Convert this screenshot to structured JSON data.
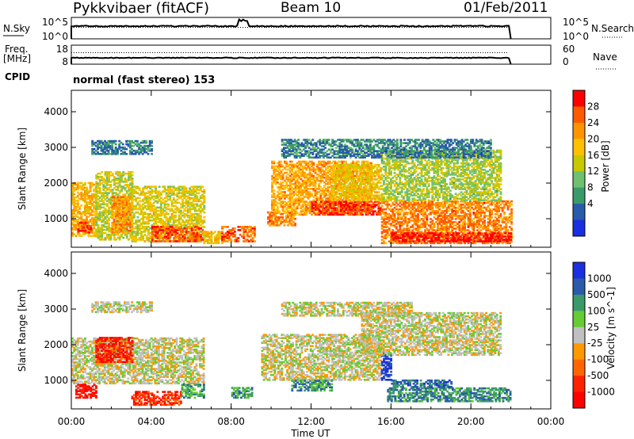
{
  "header": {
    "station": "Pykkvibaer (fitACF)",
    "beam": "Beam 10",
    "date": "01/Feb/2011"
  },
  "noise_panel": {
    "left_label": "N.Sky",
    "right_label": "N.Search",
    "left_ticks": [
      "10^5",
      "10^0"
    ],
    "right_ticks": [
      "10^5",
      "10^0"
    ]
  },
  "freq_panel": {
    "left_label_line1": "Freq.",
    "left_label_line2": "[MHz]",
    "right_label": "Nave",
    "left_ticks": [
      "18",
      "8"
    ],
    "right_ticks": [
      "60",
      "0"
    ]
  },
  "cpid": {
    "label": "CPID",
    "text": "normal (fast stereo) 153"
  },
  "chart_data": [
    {
      "type": "heatmap",
      "name": "power",
      "ylabel": "Slant Range [km]",
      "xlabel": "",
      "y_ticks": [
        1000,
        2000,
        3000,
        4000
      ],
      "ylim": [
        200,
        4600
      ],
      "xlim_hours": [
        0,
        24
      ],
      "colorbar": {
        "label": "Power [dB]",
        "ticks": [
          "28",
          "24",
          "20",
          "16",
          "12",
          "8",
          "4"
        ],
        "colors": [
          "#ff0000",
          "#ff5a00",
          "#ff9400",
          "#ffc000",
          "#c8c800",
          "#6fc06f",
          "#3a9a6a",
          "#2a5aaa",
          "#1a30e0"
        ]
      },
      "regions": [
        {
          "t": [
            0.0,
            1.2
          ],
          "r": [
            500,
            2000
          ],
          "level": 0.65
        },
        {
          "t": [
            0.3,
            1.0
          ],
          "r": [
            600,
            900
          ],
          "level": 0.95
        },
        {
          "t": [
            1.2,
            3.0
          ],
          "r": [
            400,
            2300
          ],
          "level": 0.5
        },
        {
          "t": [
            2.0,
            3.0
          ],
          "r": [
            600,
            1600
          ],
          "level": 0.75
        },
        {
          "t": [
            3.0,
            6.6
          ],
          "r": [
            350,
            1900
          ],
          "level": 0.55
        },
        {
          "t": [
            4.0,
            6.6
          ],
          "r": [
            350,
            800
          ],
          "level": 0.9
        },
        {
          "t": [
            6.6,
            7.5
          ],
          "r": [
            300,
            650
          ],
          "level": 0.6
        },
        {
          "t": [
            7.5,
            9.2
          ],
          "r": [
            350,
            800
          ],
          "level": 0.85
        },
        {
          "t": [
            9.8,
            11.2
          ],
          "r": [
            800,
            1200
          ],
          "level": 0.8
        },
        {
          "t": [
            10.0,
            15.0
          ],
          "r": [
            1100,
            2600
          ],
          "level": 0.7
        },
        {
          "t": [
            12.0,
            15.5
          ],
          "r": [
            1100,
            1500
          ],
          "level": 0.95
        },
        {
          "t": [
            13.0,
            15.5
          ],
          "r": [
            1500,
            2500
          ],
          "level": 0.6
        },
        {
          "t": [
            15.5,
            22.0
          ],
          "r": [
            300,
            1500
          ],
          "level": 0.8
        },
        {
          "t": [
            16.0,
            22.0
          ],
          "r": [
            350,
            600
          ],
          "level": 1.0
        },
        {
          "t": [
            15.5,
            21.5
          ],
          "r": [
            1500,
            2900
          ],
          "level": 0.45
        },
        {
          "t": [
            10.5,
            21.0
          ],
          "r": [
            2700,
            3200
          ],
          "level": 0.2
        },
        {
          "t": [
            1.0,
            4.0
          ],
          "r": [
            2800,
            3200
          ],
          "level": 0.2
        }
      ]
    },
    {
      "type": "heatmap",
      "name": "velocity",
      "ylabel": "Slant Range [km]",
      "xlabel": "Time UT",
      "x_ticks": [
        "00:00",
        "04:00",
        "08:00",
        "12:00",
        "16:00",
        "20:00",
        "00:00"
      ],
      "y_ticks": [
        1000,
        2000,
        3000,
        4000
      ],
      "ylim": [
        200,
        4600
      ],
      "xlim_hours": [
        0,
        24
      ],
      "colorbar": {
        "label": "Velocity [m s^-1]",
        "ticks": [
          "1000",
          "500",
          "100",
          "25",
          "-25",
          "-100",
          "-500",
          "-1000"
        ],
        "colors": [
          "#1a30e0",
          "#2a5aaa",
          "#3a9a6a",
          "#66cc33",
          "#c0c0c0",
          "#ff9900",
          "#ff6600",
          "#ff2200",
          "#ff0000"
        ]
      },
      "regions": [
        {
          "t": [
            0.0,
            6.6
          ],
          "r": [
            900,
            2200
          ],
          "level": 0.5
        },
        {
          "t": [
            0.2,
            1.2
          ],
          "r": [
            500,
            900
          ],
          "level": 0.05
        },
        {
          "t": [
            1.2,
            3.0
          ],
          "r": [
            1500,
            2200
          ],
          "level": 0.1
        },
        {
          "t": [
            3.0,
            5.5
          ],
          "r": [
            300,
            700
          ],
          "level": 0.12
        },
        {
          "t": [
            5.5,
            6.6
          ],
          "r": [
            500,
            900
          ],
          "level": 0.72
        },
        {
          "t": [
            8.0,
            9.0
          ],
          "r": [
            500,
            800
          ],
          "level": 0.75
        },
        {
          "t": [
            9.5,
            15.5
          ],
          "r": [
            1000,
            2300
          ],
          "level": 0.5
        },
        {
          "t": [
            11.0,
            13.0
          ],
          "r": [
            700,
            1000
          ],
          "level": 0.75
        },
        {
          "t": [
            15.5,
            16.0
          ],
          "r": [
            1000,
            1800
          ],
          "level": 0.97
        },
        {
          "t": [
            15.8,
            22.0
          ],
          "r": [
            400,
            800
          ],
          "level": 0.78
        },
        {
          "t": [
            16.0,
            19.0
          ],
          "r": [
            800,
            1000
          ],
          "level": 0.85
        },
        {
          "t": [
            14.5,
            21.5
          ],
          "r": [
            1700,
            2900
          ],
          "level": 0.5
        },
        {
          "t": [
            10.5,
            17.0
          ],
          "r": [
            2800,
            3200
          ],
          "level": 0.5
        },
        {
          "t": [
            1.0,
            4.0
          ],
          "r": [
            2900,
            3200
          ],
          "level": 0.5
        }
      ]
    }
  ]
}
